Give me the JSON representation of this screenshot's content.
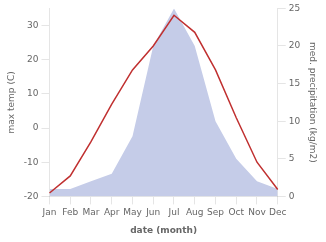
{
  "chart_data": {
    "type": "line",
    "categories": [
      "Jan",
      "Feb",
      "Mar",
      "Apr",
      "May",
      "Jun",
      "Jul",
      "Aug",
      "Sep",
      "Oct",
      "Nov",
      "Dec"
    ],
    "series": [
      {
        "type": "area",
        "color": "#c5cce8",
        "axis": "y2",
        "values": [
          1,
          1,
          2,
          3,
          8,
          20,
          25,
          20,
          10,
          5,
          2,
          1
        ]
      },
      {
        "type": "line",
        "color": "#c03030",
        "values": [
          -19,
          -14,
          -4,
          7,
          17,
          24,
          33,
          28,
          17,
          3,
          -10,
          -18
        ]
      }
    ],
    "xlabel": "date (month)",
    "ylabel": "max temp (C)",
    "y2label": "med. precipitation (kg/m2)",
    "ylim": [
      -20,
      35
    ],
    "yticks": [
      -20,
      -10,
      0,
      10,
      20,
      30
    ],
    "y2lim": [
      0,
      25
    ],
    "y2ticks": [
      0,
      5,
      10,
      15,
      20,
      25
    ],
    "grid": false
  }
}
